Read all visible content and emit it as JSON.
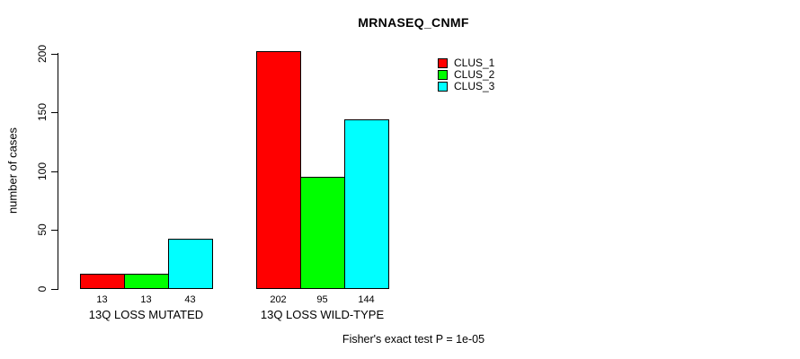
{
  "chart_data": {
    "type": "bar",
    "title": "MRNASEQ_CNMF",
    "xlabel": "",
    "ylabel": "number of cases",
    "ylim": [
      0,
      200
    ],
    "yticks": [
      0,
      50,
      100,
      150,
      200
    ],
    "grid": false,
    "legend_position": "top-right",
    "bar_value_labels": true,
    "categories": [
      "13Q LOSS MUTATED",
      "13Q LOSS WILD-TYPE"
    ],
    "groups": [
      {
        "label": "13Q LOSS MUTATED",
        "values": [
          13,
          13,
          43
        ]
      },
      {
        "label": "13Q LOSS WILD-TYPE",
        "values": [
          202,
          95,
          144
        ]
      }
    ],
    "series": [
      {
        "name": "CLUS_1",
        "color": "#ff0000"
      },
      {
        "name": "CLUS_2",
        "color": "#00ff00"
      },
      {
        "name": "CLUS_3",
        "color": "#00ffff"
      }
    ],
    "annotation": "Fisher's exact test P = 1e-05"
  },
  "colors": {
    "background": "#ffffff",
    "axis": "#000000",
    "bar_border": "#000000",
    "text": "#000000"
  }
}
